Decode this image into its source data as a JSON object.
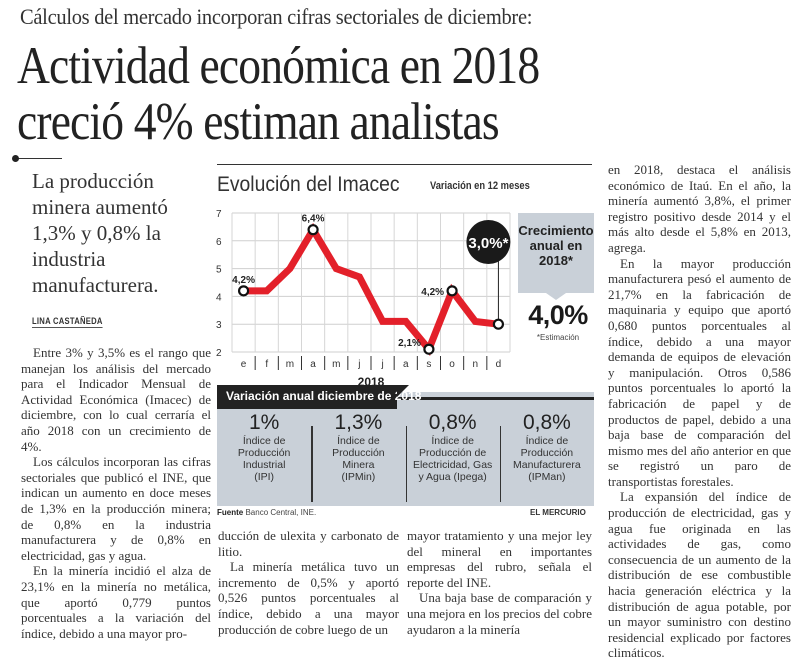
{
  "article": {
    "kicker": "Cálculos del mercado incorporan cifras sectoriales de diciembre:",
    "headline_line1": "Actividad económica en 2018",
    "headline_line2": "creció 4% estiman analistas",
    "lead": "La producción minera aumentó 1,3% y 0,8% la industria manufacturera.",
    "byline": "LINA CASTAÑEDA",
    "body_col1": [
      "Entre 3% y 3,5% es el rango que manejan los análisis del mercado para el Indicador Mensual de Actividad Económica (Imacec) de diciembre, con lo cual cerraría el año 2018 con un crecimiento de 4%.",
      "Los cálculos incorporan las cifras sectoriales que publicó el INE, que indican un aumento en doce meses de 1,3% en la producción minera; de 0,8% en la industria manufacturera y de 0,8% en electricidad, gas y agua.",
      "En la minería incidió el alza de 23,1% en la minería no metálica, que aportó 0,779 puntos porcentuales a la variación del índice, debido a una mayor pro-"
    ],
    "body_col2": [
      "ducción de ulexita y carbonato de litio.",
      "La minería metálica tuvo un incremento de 0,5% y aportó 0,526 puntos porcentuales al índice, debido a una mayor producción de cobre luego de un"
    ],
    "body_col3": [
      "mayor tratamiento y una mejor ley del mineral en importantes empresas del rubro, señala el reporte del INE.",
      "Una baja base de comparación y una mejora en los precios del cobre ayudaron a la minería"
    ],
    "body_col4": [
      "en 2018, destaca el análisis económico de Itaú. En el año, la minería aumentó 3,8%, el primer registro positivo desde 2014 y el más alto desde el 5,8% en 2013, agrega.",
      "En la mayor producción manufacturera pesó el aumento de 21,7% en la fabricación de maquinaria y equipo que aportó 0,680 puntos porcentuales al índice, debido a una mayor demanda de equipos de elevación y manipulación. Otros 0,586 puntos porcentuales lo aportó la fabricación de papel y de productos de papel, debido a una baja base de comparación del mismo mes del año anterior en que se registró un paro de transportistas forestales.",
      "La expansión del índice de producción de electricidad, gas y agua fue originada en las actividades de gas, como consecuencia de un aumento de la distribución de ese combustible hacia generación eléctrica y la distribución de agua potable, por un mayor suministro con destino residencial explicado por factores climáticos."
    ]
  },
  "infographic": {
    "callout_label": "Crecimiento anual en 2018*",
    "callout_value": "4,0%",
    "estimate_note": "*Estimación",
    "annual_header": "Variación anual diciembre de 2018",
    "indices": [
      {
        "value": "1%",
        "label": "Índice de Producción Industrial (IPI)"
      },
      {
        "value": "1,3%",
        "label": "Índice de Producción Minera (IPMin)"
      },
      {
        "value": "0,8%",
        "label": "Índice de Producción de Electricidad, Gas y Agua (Ipega)"
      },
      {
        "value": "0,8%",
        "label": "Índice de Producción Manufacturera (IPMan)"
      }
    ],
    "source_label": "Fuente",
    "source_text": "Banco Central, INE.",
    "brand": "EL MERCURIO",
    "accent_color": "#e3202a",
    "panel_color": "#c9d0d8"
  },
  "chart_data": {
    "type": "line",
    "title": "Evolución del Imacec",
    "subtitle": "Variación en 12 meses",
    "xlabel": "2018",
    "ylabel": "",
    "categories": [
      "e",
      "f",
      "m",
      "a",
      "m",
      "j",
      "j",
      "a",
      "s",
      "o",
      "n",
      "d"
    ],
    "series": [
      {
        "name": "Imacec",
        "values": [
          4.2,
          4.2,
          5.0,
          6.4,
          5.0,
          4.7,
          3.1,
          3.1,
          2.1,
          4.2,
          3.1,
          3.0
        ]
      }
    ],
    "ylim": [
      2,
      7
    ],
    "yticks": [
      2,
      3,
      4,
      5,
      6,
      7
    ],
    "grid": true,
    "annotations": [
      {
        "index": 0,
        "label": "4,2%"
      },
      {
        "index": 3,
        "label": "6,4%"
      },
      {
        "index": 8,
        "label": "2,1%"
      },
      {
        "index": 9,
        "label": "4,2%"
      },
      {
        "index": 11,
        "label": "3,0%*"
      }
    ]
  }
}
